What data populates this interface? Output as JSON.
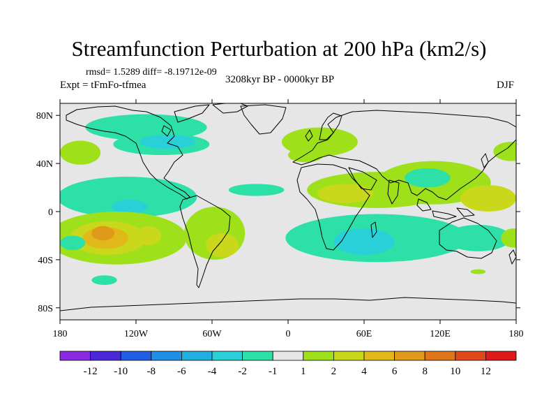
{
  "title": "Streamfunction Perturbation at 200 hPa (km2/s)",
  "stats": "rmsd= 1.5289 diff= -8.19712e-09",
  "period": "3208kyr BP - 0000kyr BP",
  "experiment": "Expt = tFmFo-tfmea",
  "season": "DJF",
  "map": {
    "lon_range": [
      -180,
      180
    ],
    "lat_range": [
      -90,
      90
    ],
    "x_ticks": [
      {
        "value": -180,
        "label": "180"
      },
      {
        "value": -120,
        "label": "120W"
      },
      {
        "value": -60,
        "label": "60W"
      },
      {
        "value": 0,
        "label": "0"
      },
      {
        "value": 60,
        "label": "60E"
      },
      {
        "value": 120,
        "label": "120E"
      },
      {
        "value": 180,
        "label": "180"
      }
    ],
    "y_ticks": [
      {
        "value": 80,
        "label": "80N"
      },
      {
        "value": 40,
        "label": "40N"
      },
      {
        "value": 0,
        "label": "0"
      },
      {
        "value": -40,
        "label": "40S"
      },
      {
        "value": -80,
        "label": "80S"
      }
    ],
    "background_color": "#e6e6e6",
    "regions": [
      {
        "kind": "negative",
        "lon": -112,
        "lat": 70,
        "rlon": 48,
        "rlat": 11,
        "level": 1
      },
      {
        "kind": "negative",
        "lon": -100,
        "lat": 56,
        "rlon": 38,
        "rlat": 9,
        "level": 1
      },
      {
        "kind": "negative",
        "lon": -95,
        "lat": 58,
        "rlon": 22,
        "rlat": 6,
        "level": 2
      },
      {
        "kind": "positive",
        "lon": -164,
        "lat": 49,
        "rlon": 16,
        "rlat": 10,
        "level": 1
      },
      {
        "kind": "negative",
        "lon": -127,
        "lat": 12,
        "rlon": 55,
        "rlat": 17,
        "level": 1
      },
      {
        "kind": "negative",
        "lon": -125,
        "lat": 4,
        "rlon": 14,
        "rlat": 6,
        "level": 2
      },
      {
        "kind": "positive",
        "lon": -135,
        "lat": -22,
        "rlon": 55,
        "rlat": 22,
        "level": 1
      },
      {
        "kind": "positive",
        "lon": -142,
        "lat": -22,
        "rlon": 30,
        "rlat": 14,
        "level": 2
      },
      {
        "kind": "positive",
        "lon": -144,
        "lat": -22,
        "rlon": 18,
        "rlat": 9,
        "level": 3
      },
      {
        "kind": "positive",
        "lon": -146,
        "lat": -18,
        "rlon": 9,
        "rlat": 6,
        "level": 4
      },
      {
        "kind": "positive",
        "lon": -58,
        "lat": -18,
        "rlon": 24,
        "rlat": 22,
        "level": 1
      },
      {
        "kind": "positive",
        "lon": -52,
        "lat": -28,
        "rlon": 13,
        "rlat": 10,
        "level": 2
      },
      {
        "kind": "positive",
        "lon": -110,
        "lat": -20,
        "rlon": 10,
        "rlat": 8,
        "level": 2
      },
      {
        "kind": "negative",
        "lon": -170,
        "lat": -26,
        "rlon": 10,
        "rlat": 6,
        "level": 1
      },
      {
        "kind": "negative",
        "lon": -145,
        "lat": -57,
        "rlon": 10,
        "rlat": 4,
        "level": 1
      },
      {
        "kind": "negative",
        "lon": -25,
        "lat": 18,
        "rlon": 22,
        "rlat": 5,
        "level": 1
      },
      {
        "kind": "positive",
        "lon": 25,
        "lat": 58,
        "rlon": 30,
        "rlat": 12,
        "level": 1
      },
      {
        "kind": "positive",
        "lon": 14,
        "lat": 47,
        "rlon": 14,
        "rlat": 6,
        "level": 1
      },
      {
        "kind": "positive",
        "lon": 70,
        "lat": 18,
        "rlon": 55,
        "rlat": 15,
        "level": 1
      },
      {
        "kind": "positive",
        "lon": 45,
        "lat": 15,
        "rlon": 22,
        "rlat": 8,
        "level": 2
      },
      {
        "kind": "positive",
        "lon": 115,
        "lat": 24,
        "rlon": 45,
        "rlat": 18,
        "level": 1
      },
      {
        "kind": "positive",
        "lon": 158,
        "lat": 11,
        "rlon": 22,
        "rlat": 11,
        "level": 2
      },
      {
        "kind": "positive",
        "lon": 176,
        "lat": 50,
        "rlon": 14,
        "rlat": 8,
        "level": 1
      },
      {
        "kind": "negative",
        "lon": 110,
        "lat": 28,
        "rlon": 18,
        "rlat": 8,
        "level": 1
      },
      {
        "kind": "negative",
        "lon": 70,
        "lat": -22,
        "rlon": 72,
        "rlat": 20,
        "level": 1
      },
      {
        "kind": "negative",
        "lon": 60,
        "lat": -25,
        "rlon": 24,
        "rlat": 11,
        "level": 2
      },
      {
        "kind": "negative",
        "lon": 150,
        "lat": -22,
        "rlon": 26,
        "rlat": 11,
        "level": 1
      },
      {
        "kind": "positive",
        "lon": 150,
        "lat": -50,
        "rlon": 6,
        "rlat": 2,
        "level": 1
      },
      {
        "kind": "positive",
        "lon": 178,
        "lat": -22,
        "rlon": 10,
        "rlat": 8,
        "level": 1
      }
    ]
  },
  "colorbar": {
    "colors": [
      "#8a2be2",
      "#4b29d9",
      "#1f5fe6",
      "#2090e6",
      "#1fb0e0",
      "#2ad0d8",
      "#2de0a8",
      "#e6e6e6",
      "#9ee01a",
      "#c9d81a",
      "#e0b81a",
      "#e09a1a",
      "#e0761a",
      "#e04a1a",
      "#e01a1a"
    ],
    "labels": [
      "-12",
      "-10",
      "-8",
      "-6",
      "-4",
      "-2",
      "-1",
      "1",
      "2",
      "4",
      "6",
      "8",
      "10",
      "12"
    ]
  }
}
